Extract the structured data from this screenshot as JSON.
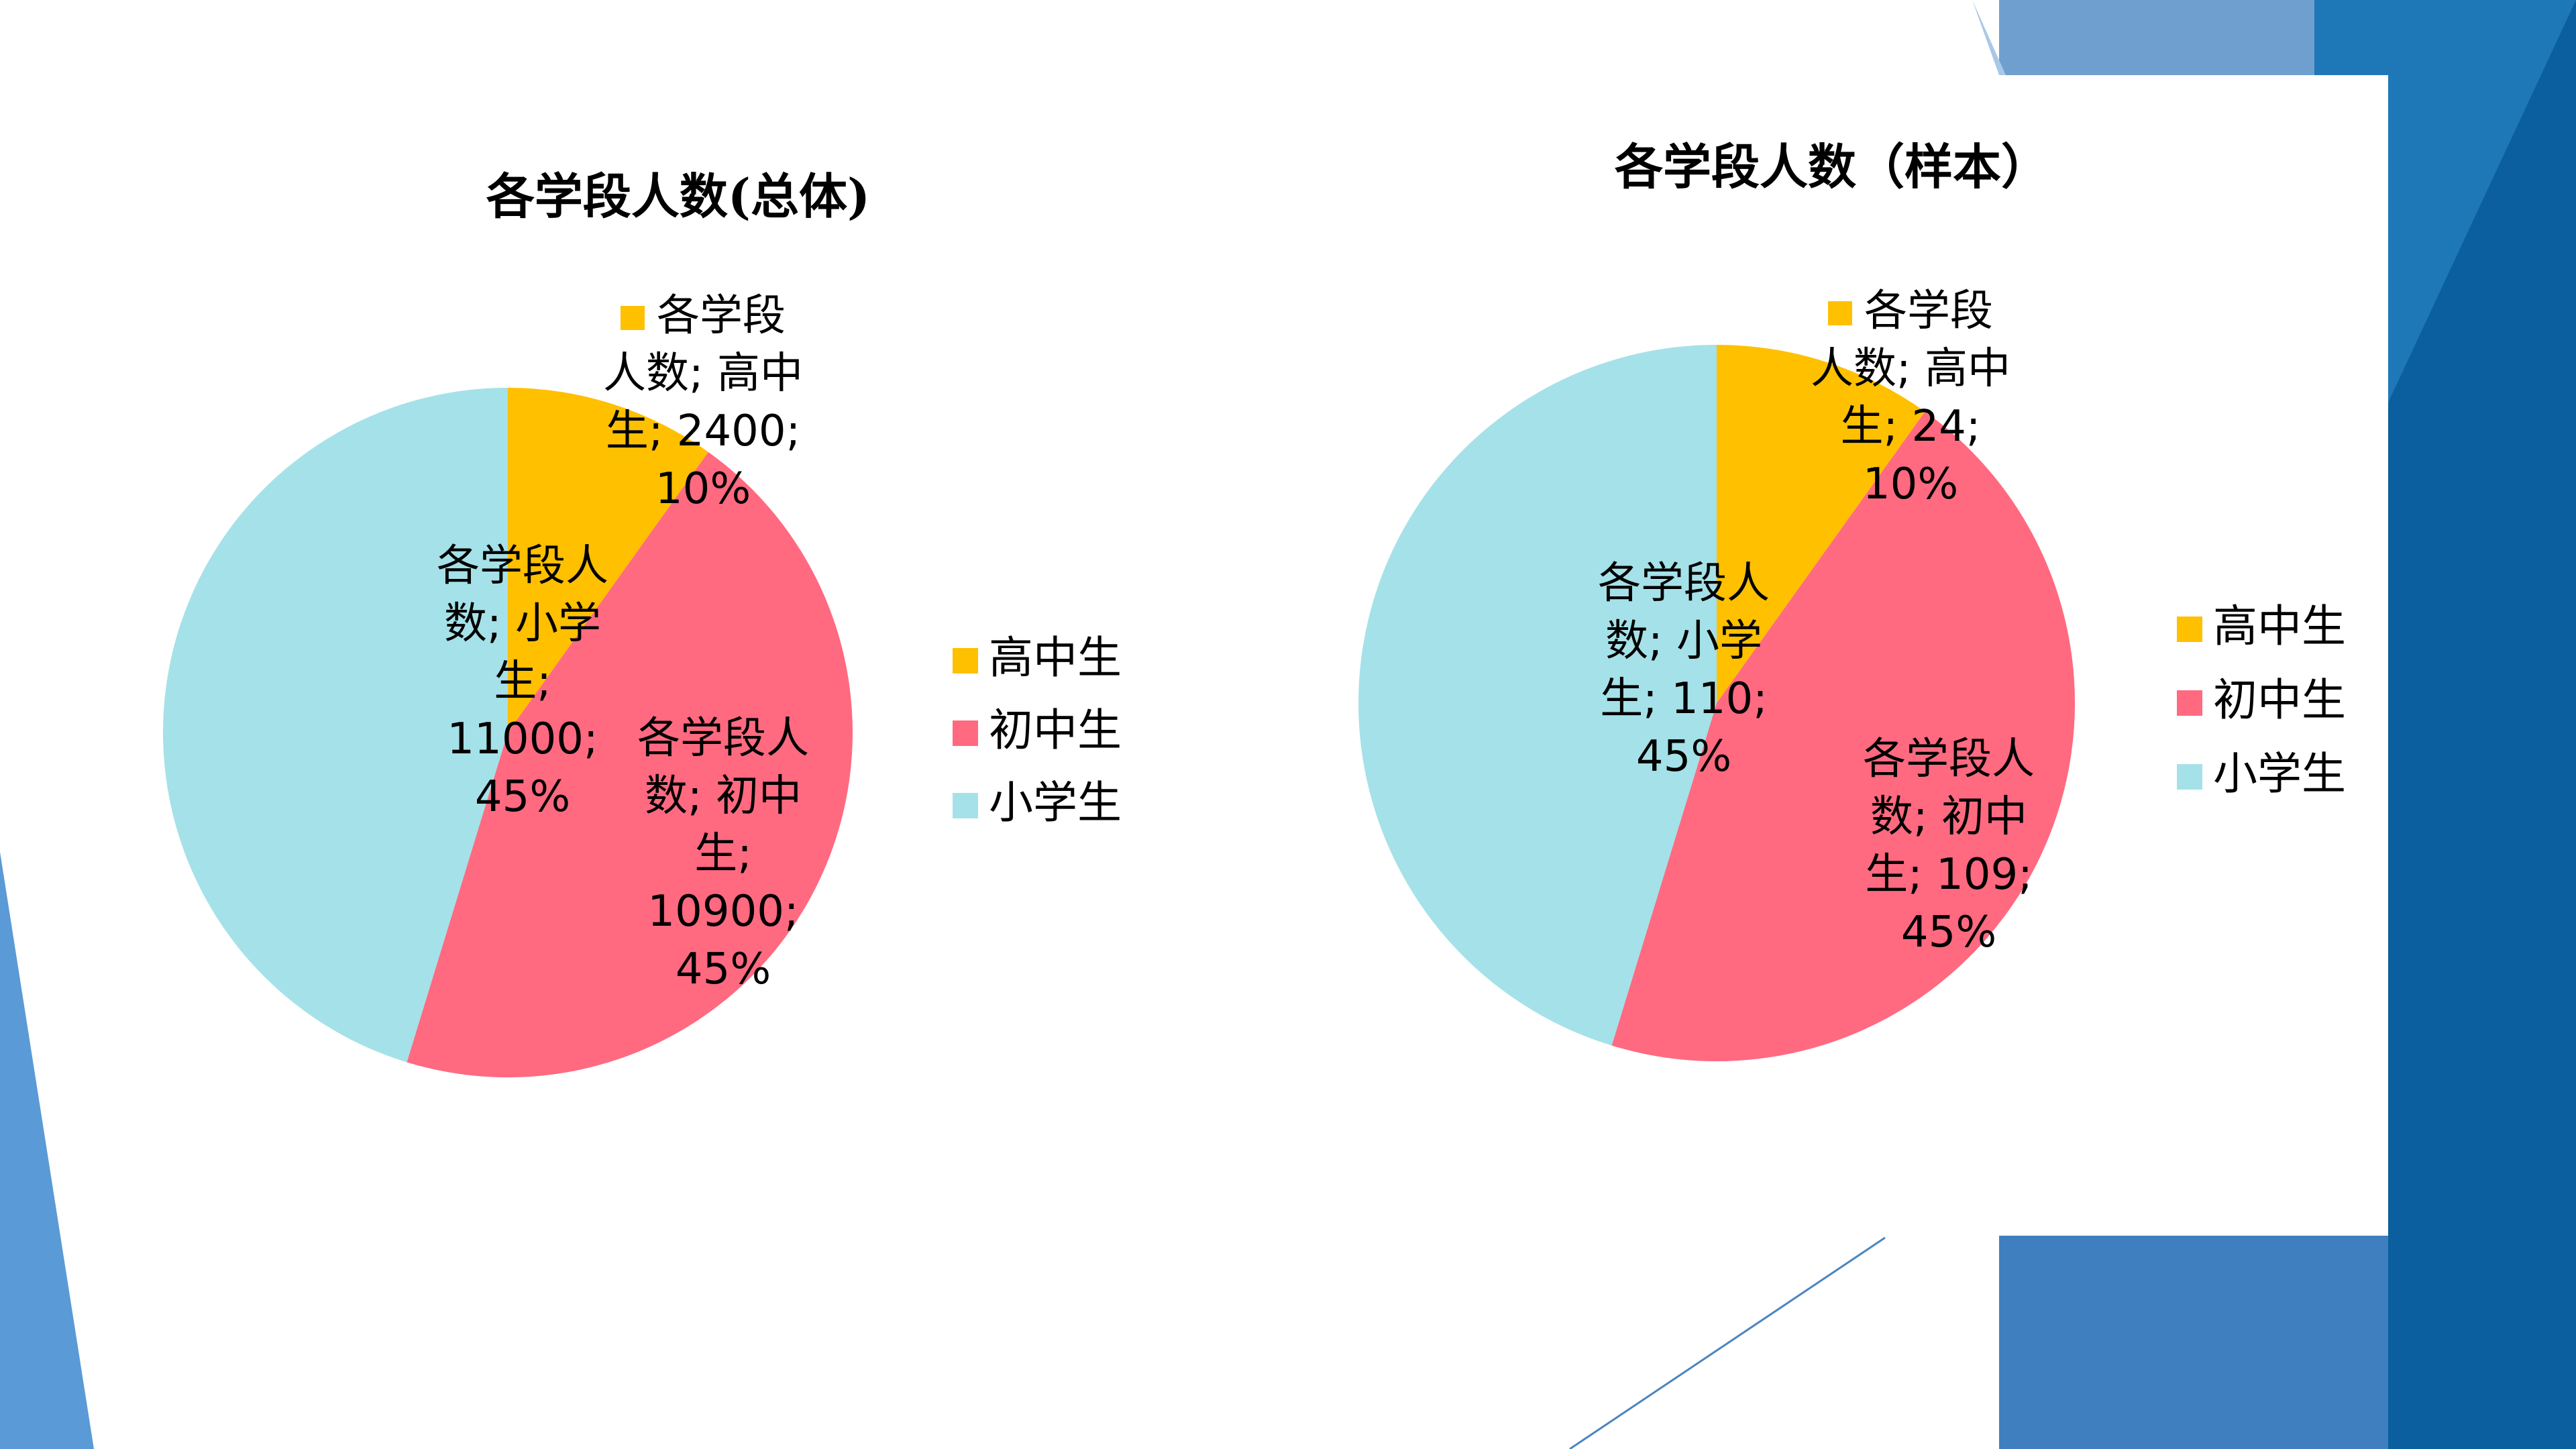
{
  "chart_data": [
    {
      "type": "pie",
      "title": "各学段人数(总体)",
      "series_name": "各学段人数",
      "categories": [
        "高中生",
        "初中生",
        "小学生"
      ],
      "values": [
        2400,
        10900,
        11000
      ],
      "colors": [
        "#ffc000",
        "#ff6a80",
        "#a5e1e8"
      ],
      "data_labels": [
        "各学段人数; 高中生; 2400; 10%",
        "各学段人数; 初中生; 10900; 45%",
        "各学段人数; 小学生; 11000; 45%"
      ],
      "legend": "right"
    },
    {
      "type": "pie",
      "title": "各学段人数（样本）",
      "series_name": "各学段人数",
      "categories": [
        "高中生",
        "初中生",
        "小学生"
      ],
      "values": [
        24,
        109,
        110
      ],
      "colors": [
        "#ffc000",
        "#ff6a80",
        "#a5e1e8"
      ],
      "data_labels": [
        "各学段人数; 高中生; 24; 10%",
        "各学段人数; 初中生; 109; 45%",
        "各学段人数; 小学生; 110; 45%"
      ],
      "legend": "right"
    }
  ]
}
